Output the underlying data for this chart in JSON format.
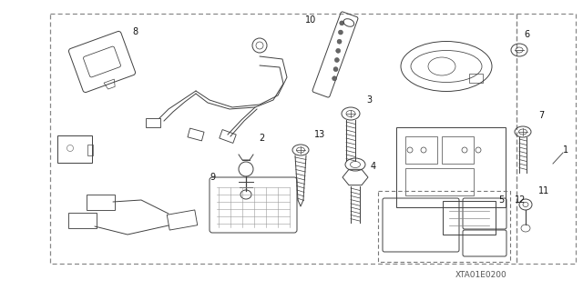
{
  "bg_color": "#ffffff",
  "part_color": "#404040",
  "border_color": "#888888",
  "diagram_code": "XTA01E0200",
  "figure_width": 6.4,
  "figure_height": 3.19,
  "dpi": 100,
  "label_fontsize": 7.0,
  "code_fontsize": 6.5
}
